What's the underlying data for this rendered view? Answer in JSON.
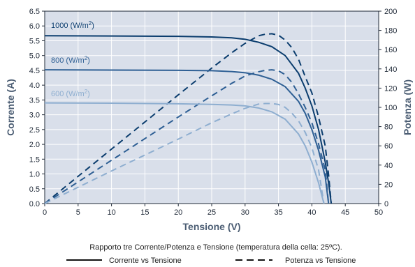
{
  "chart_data": {
    "type": "line",
    "caption": "Rapporto tre Corrente/Potenza e Tensione (temperatura della cella: 25ºC).",
    "xlabel": "Tensione (V)",
    "ylabel_left": "Corrente (A)",
    "ylabel_right": "Potenza (W)",
    "xlim": [
      0,
      50
    ],
    "ylim_left": [
      0,
      6.5
    ],
    "ylim_right": [
      0,
      200
    ],
    "x_ticks": [
      "0",
      "5",
      "10",
      "15",
      "20",
      "25",
      "30",
      "35",
      "40",
      "45",
      "50"
    ],
    "y_left_ticks": [
      "0.0",
      "0.5",
      "1.0",
      "1.5",
      "2.0",
      "2.5",
      "3.0",
      "3.5",
      "4.0",
      "4.5",
      "5.0",
      "5.5",
      "6.0",
      "6.5"
    ],
    "y_right_ticks": [
      "0",
      "20",
      "40",
      "60",
      "80",
      "100",
      "120",
      "140",
      "160",
      "180",
      "200"
    ],
    "grid": true,
    "background": "#d9dfea",
    "legend": [
      {
        "label": "Corrente vs Tensione",
        "style": "solid"
      },
      {
        "label": "Potenza vs Tensione",
        "style": "dashed"
      }
    ],
    "series": [
      {
        "name": "1000 (W/m²)",
        "label_main": "1000 (W/m",
        "label_sup": "2",
        "label_end": ")",
        "color": "#0b3d6e",
        "current": {
          "x": [
            0,
            10,
            20,
            25,
            28,
            30,
            32,
            34,
            36,
            38,
            39,
            40,
            41,
            42,
            42.5,
            42.9
          ],
          "y": [
            5.67,
            5.66,
            5.65,
            5.63,
            5.6,
            5.55,
            5.45,
            5.3,
            5.0,
            4.4,
            3.9,
            3.3,
            2.5,
            1.4,
            0.7,
            0.0
          ]
        },
        "power": {
          "x": [
            0,
            10,
            20,
            25,
            28,
            30,
            32,
            33,
            34,
            35,
            36,
            37,
            38,
            39,
            40,
            41,
            42,
            42.5,
            42.9
          ],
          "y": [
            0,
            56.6,
            113,
            140.8,
            156.8,
            166.5,
            174.4,
            176,
            176.5,
            175,
            170,
            162,
            150,
            132,
            115,
            90,
            60,
            30,
            0
          ]
        }
      },
      {
        "name": "800 (W/m²)",
        "label_main": "800 (W/m",
        "label_sup": "2",
        "label_end": ")",
        "color": "#2e5f94",
        "current": {
          "x": [
            0,
            10,
            20,
            25,
            28,
            30,
            32,
            34,
            36,
            38,
            39,
            40,
            41,
            42,
            42.5
          ],
          "y": [
            4.52,
            4.51,
            4.5,
            4.49,
            4.46,
            4.42,
            4.34,
            4.2,
            3.95,
            3.45,
            3.05,
            2.5,
            1.8,
            0.9,
            0.0
          ]
        },
        "power": {
          "x": [
            0,
            10,
            20,
            25,
            28,
            30,
            32,
            33,
            34,
            35,
            36,
            37,
            38,
            39,
            40,
            41,
            42,
            42.5
          ],
          "y": [
            0,
            45,
            90,
            112,
            125,
            132.6,
            137,
            138.5,
            139,
            138,
            134,
            126,
            114,
            100,
            84,
            62,
            35,
            0
          ]
        }
      },
      {
        "name": "600 (W/m²)",
        "label_main": "600 (W/m",
        "label_sup": "2",
        "label_end": ")",
        "color": "#8eaed0",
        "current": {
          "x": [
            0,
            10,
            20,
            25,
            28,
            30,
            32,
            34,
            36,
            38,
            39,
            40,
            41,
            41.8
          ],
          "y": [
            3.4,
            3.39,
            3.37,
            3.35,
            3.33,
            3.3,
            3.23,
            3.1,
            2.85,
            2.35,
            1.95,
            1.4,
            0.7,
            0.0
          ]
        },
        "power": {
          "x": [
            0,
            10,
            20,
            25,
            28,
            30,
            32,
            33,
            34,
            35,
            36,
            37,
            38,
            39,
            40,
            41,
            41.8
          ],
          "y": [
            0,
            33.9,
            67,
            84,
            93.2,
            99,
            103.4,
            104,
            104,
            103,
            100,
            94,
            86,
            74,
            58,
            35,
            0
          ]
        }
      }
    ]
  }
}
